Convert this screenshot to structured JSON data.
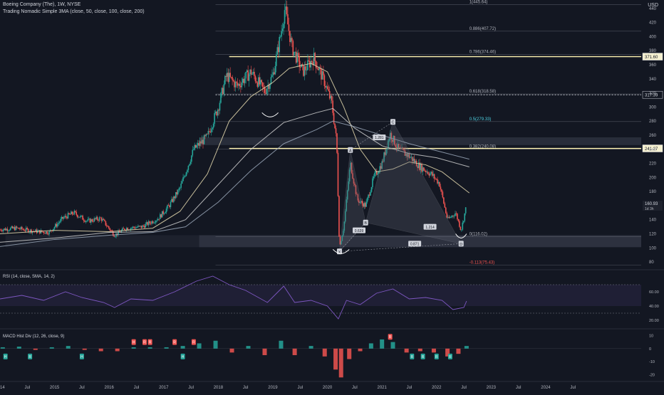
{
  "header": {
    "symbol_line": "Boeing Company (The), 1W, NYSE",
    "indicator_line": "Trading Nomadic Simple 3MA (close, 50, close, 100, close, 200)",
    "currency": "USD",
    "rsi_label": "RSI (14, close, SMA, 14, 2)",
    "macd_label": "MACD Hist Div (12, 26, close, 9)"
  },
  "colors": {
    "background": "#131722",
    "up": "#26a69a",
    "down": "#ef5350",
    "axis_text": "#b2b5be",
    "sma50": "#e8dcb0",
    "sma100": "#cfcfcf",
    "sma200": "#9aa7b8",
    "rsi": "#7e57c2",
    "level_line": "#fff3b0",
    "pattern": "#9598a1"
  },
  "chart_data": {
    "type": "candlestick",
    "price_axis": {
      "ylim": [
        70,
        452
      ],
      "ticks": [
        80,
        100,
        120,
        140,
        160,
        180,
        200,
        220,
        240,
        260,
        280,
        300,
        320,
        340,
        360,
        380,
        400,
        420,
        440
      ]
    },
    "time_axis": {
      "x_range": [
        2014.0,
        2025.75
      ],
      "labels": [
        {
          "t": 2014.0,
          "label": "2014"
        },
        {
          "t": 2014.5,
          "label": "Jul"
        },
        {
          "t": 2015.0,
          "label": "2015"
        },
        {
          "t": 2015.5,
          "label": "Jul"
        },
        {
          "t": 2016.0,
          "label": "2016"
        },
        {
          "t": 2016.5,
          "label": "Jul"
        },
        {
          "t": 2017.0,
          "label": "2017"
        },
        {
          "t": 2017.5,
          "label": "Jul"
        },
        {
          "t": 2018.0,
          "label": "2018"
        },
        {
          "t": 2018.5,
          "label": "Jul"
        },
        {
          "t": 2019.0,
          "label": "2019"
        },
        {
          "t": 2019.5,
          "label": "Jul"
        },
        {
          "t": 2020.0,
          "label": "2020"
        },
        {
          "t": 2020.5,
          "label": "Jul"
        },
        {
          "t": 2021.0,
          "label": "2021"
        },
        {
          "t": 2021.5,
          "label": "Jul"
        },
        {
          "t": 2022.0,
          "label": "2022"
        },
        {
          "t": 2022.5,
          "label": "Jul"
        },
        {
          "t": 2023.0,
          "label": "2023"
        },
        {
          "t": 2023.5,
          "label": "Jul"
        },
        {
          "t": 2024.0,
          "label": "2024"
        },
        {
          "t": 2024.5,
          "label": "Jul"
        }
      ]
    },
    "price_path": [
      [
        2014.0,
        126
      ],
      [
        2014.3,
        128
      ],
      [
        2014.6,
        124
      ],
      [
        2014.9,
        122
      ],
      [
        2015.15,
        142
      ],
      [
        2015.35,
        150
      ],
      [
        2015.6,
        138
      ],
      [
        2015.85,
        142
      ],
      [
        2016.1,
        118
      ],
      [
        2016.3,
        128
      ],
      [
        2016.6,
        130
      ],
      [
        2016.9,
        142
      ],
      [
        2017.1,
        160
      ],
      [
        2017.3,
        185
      ],
      [
        2017.55,
        240
      ],
      [
        2017.8,
        258
      ],
      [
        2018.0,
        300
      ],
      [
        2018.15,
        345
      ],
      [
        2018.35,
        330
      ],
      [
        2018.6,
        350
      ],
      [
        2018.85,
        322
      ],
      [
        2019.0,
        345
      ],
      [
        2019.15,
        405
      ],
      [
        2019.22,
        440
      ],
      [
        2019.35,
        385
      ],
      [
        2019.55,
        350
      ],
      [
        2019.75,
        370
      ],
      [
        2019.95,
        335
      ],
      [
        2020.08,
        305
      ],
      [
        2020.17,
        250
      ],
      [
        2020.22,
        100
      ],
      [
        2020.3,
        130
      ],
      [
        2020.42,
        220
      ],
      [
        2020.55,
        168
      ],
      [
        2020.7,
        160
      ],
      [
        2020.85,
        200
      ],
      [
        2021.0,
        220
      ],
      [
        2021.15,
        262
      ],
      [
        2021.3,
        240
      ],
      [
        2021.5,
        230
      ],
      [
        2021.7,
        215
      ],
      [
        2021.9,
        205
      ],
      [
        2022.05,
        192
      ],
      [
        2022.2,
        140
      ],
      [
        2022.35,
        150
      ],
      [
        2022.45,
        125
      ],
      [
        2022.55,
        160.93
      ]
    ],
    "sma_lines": [
      {
        "name": "SMA 50",
        "points": [
          [
            2014.0,
            120
          ],
          [
            2015.0,
            125
          ],
          [
            2016.0,
            123
          ],
          [
            2016.8,
            128
          ],
          [
            2017.3,
            152
          ],
          [
            2017.8,
            205
          ],
          [
            2018.2,
            280
          ],
          [
            2018.6,
            315
          ],
          [
            2019.0,
            335
          ],
          [
            2019.3,
            355
          ],
          [
            2019.7,
            362
          ],
          [
            2020.0,
            350
          ],
          [
            2020.3,
            300
          ],
          [
            2020.6,
            240
          ],
          [
            2020.9,
            208
          ],
          [
            2021.2,
            212
          ],
          [
            2021.5,
            222
          ],
          [
            2021.8,
            218
          ],
          [
            2022.1,
            208
          ],
          [
            2022.4,
            190
          ],
          [
            2022.6,
            178
          ]
        ]
      },
      {
        "name": "SMA 100",
        "points": [
          [
            2014.0,
            108
          ],
          [
            2015.0,
            114
          ],
          [
            2016.0,
            122
          ],
          [
            2016.8,
            123
          ],
          [
            2017.4,
            140
          ],
          [
            2018.0,
            190
          ],
          [
            2018.6,
            240
          ],
          [
            2019.2,
            278
          ],
          [
            2019.8,
            292
          ],
          [
            2020.1,
            298
          ],
          [
            2020.5,
            270
          ],
          [
            2021.0,
            245
          ],
          [
            2021.5,
            234
          ],
          [
            2022.0,
            228
          ],
          [
            2022.6,
            215
          ]
        ]
      },
      {
        "name": "SMA 200",
        "points": [
          [
            2014.0,
            102
          ],
          [
            2015.0,
            112
          ],
          [
            2016.0,
            118
          ],
          [
            2016.8,
            122
          ],
          [
            2017.4,
            130
          ],
          [
            2018.0,
            165
          ],
          [
            2018.6,
            210
          ],
          [
            2019.2,
            248
          ],
          [
            2019.8,
            268
          ],
          [
            2020.1,
            280
          ],
          [
            2020.5,
            272
          ],
          [
            2021.0,
            260
          ],
          [
            2021.5,
            248
          ],
          [
            2022.0,
            238
          ],
          [
            2022.6,
            226
          ]
        ]
      }
    ],
    "fib_levels": [
      {
        "label": "1(445.64)",
        "price": 445.64
      },
      {
        "label": "0.886(407.72)",
        "price": 407.72
      },
      {
        "label": "0.786(374.46)",
        "price": 374.46
      },
      {
        "label": "0.618(318.58)",
        "price": 318.58
      },
      {
        "label": "0.5(279.33)",
        "price": 279.33
      },
      {
        "label": "0.382(240.08)",
        "price": 240.08
      },
      {
        "label": "0(116.02)",
        "price": 116.02
      },
      {
        "label": "-0.113(75.43)",
        "price": 75.43
      }
    ],
    "horizontal_lines": [
      {
        "price": 371.6,
        "label": "371.60"
      },
      {
        "price": 317.39,
        "label": "317.39"
      },
      {
        "price": 241.27,
        "label": "241.27"
      }
    ],
    "zones": [
      {
        "from": 246,
        "to": 257
      },
      {
        "from": 101,
        "to": 118
      }
    ],
    "pattern_points": [
      {
        "label": "X",
        "t": 2020.22,
        "price": 95
      },
      {
        "label": "A",
        "t": 2020.42,
        "price": 239
      },
      {
        "label": "B",
        "t": 2020.7,
        "price": 136
      },
      {
        "label": "C",
        "t": 2021.2,
        "price": 279
      },
      {
        "label": "D",
        "t": 2022.45,
        "price": 106
      }
    ],
    "pattern_ratios": [
      {
        "label": "0.639",
        "t": 2020.58,
        "price": 125
      },
      {
        "label": "1.281",
        "t": 2020.95,
        "price": 257
      },
      {
        "label": "1.214",
        "t": 2021.88,
        "price": 130
      },
      {
        "label": "0.871",
        "t": 2021.6,
        "price": 106
      }
    ],
    "last_price": {
      "price": 160.93,
      "label": "160.93",
      "sublabel": "1d 3h"
    },
    "rsi": {
      "ticks": [
        20,
        40,
        60
      ],
      "ylim": [
        10,
        90
      ],
      "zone": [
        40,
        70
      ],
      "points": [
        [
          2014.0,
          50
        ],
        [
          2014.4,
          55
        ],
        [
          2014.8,
          48
        ],
        [
          2015.2,
          60
        ],
        [
          2015.5,
          52
        ],
        [
          2015.9,
          45
        ],
        [
          2016.1,
          38
        ],
        [
          2016.4,
          50
        ],
        [
          2016.8,
          48
        ],
        [
          2017.2,
          60
        ],
        [
          2017.6,
          75
        ],
        [
          2017.9,
          82
        ],
        [
          2018.2,
          70
        ],
        [
          2018.5,
          62
        ],
        [
          2018.9,
          45
        ],
        [
          2019.2,
          68
        ],
        [
          2019.4,
          45
        ],
        [
          2019.7,
          48
        ],
        [
          2020.0,
          40
        ],
        [
          2020.2,
          22
        ],
        [
          2020.35,
          48
        ],
        [
          2020.6,
          42
        ],
        [
          2020.9,
          58
        ],
        [
          2021.2,
          64
        ],
        [
          2021.5,
          50
        ],
        [
          2021.8,
          52
        ],
        [
          2022.1,
          48
        ],
        [
          2022.3,
          35
        ],
        [
          2022.5,
          38
        ],
        [
          2022.55,
          47
        ]
      ]
    },
    "macd": {
      "ticks": [
        10,
        0,
        -10,
        -20
      ],
      "ylim": [
        -24,
        14
      ],
      "hist": [
        [
          2014.05,
          1
        ],
        [
          2014.35,
          1.5
        ],
        [
          2014.65,
          -1
        ],
        [
          2014.95,
          1
        ],
        [
          2015.25,
          2
        ],
        [
          2015.55,
          -1
        ],
        [
          2015.85,
          -2
        ],
        [
          2016.15,
          -2
        ],
        [
          2016.45,
          1
        ],
        [
          2016.75,
          1
        ],
        [
          2017.05,
          1
        ],
        [
          2017.35,
          2
        ],
        [
          2017.65,
          4
        ],
        [
          2017.95,
          6
        ],
        [
          2018.25,
          -3
        ],
        [
          2018.55,
          2
        ],
        [
          2018.85,
          -5
        ],
        [
          2019.15,
          6
        ],
        [
          2019.4,
          -5
        ],
        [
          2019.7,
          2
        ],
        [
          2019.95,
          -6
        ],
        [
          2020.15,
          -16
        ],
        [
          2020.25,
          -22
        ],
        [
          2020.4,
          -8
        ],
        [
          2020.6,
          -2
        ],
        [
          2020.8,
          4
        ],
        [
          2021.0,
          7
        ],
        [
          2021.2,
          5
        ],
        [
          2021.45,
          -3
        ],
        [
          2021.7,
          -2
        ],
        [
          2021.95,
          -3
        ],
        [
          2022.2,
          -6
        ],
        [
          2022.4,
          -4
        ],
        [
          2022.55,
          2
        ]
      ],
      "divergence_labels": [
        {
          "label": "H",
          "t": 2014.1,
          "v": -6,
          "color": "#26a69a"
        },
        {
          "label": "R",
          "t": 2014.55,
          "v": -6,
          "color": "#26a69a"
        },
        {
          "label": "H",
          "t": 2015.5,
          "v": -6,
          "color": "#26a69a"
        },
        {
          "label": "H",
          "t": 2016.45,
          "v": 5,
          "color": "#ef5350"
        },
        {
          "label": "R",
          "t": 2016.65,
          "v": 5,
          "color": "#ef5350"
        },
        {
          "label": "R",
          "t": 2016.75,
          "v": 5,
          "color": "#ef5350"
        },
        {
          "label": "R",
          "t": 2017.2,
          "v": 5,
          "color": "#ef5350"
        },
        {
          "label": "H",
          "t": 2017.35,
          "v": -6,
          "color": "#26a69a"
        },
        {
          "label": "R",
          "t": 2017.55,
          "v": 5,
          "color": "#ef5350"
        },
        {
          "label": "R",
          "t": 2021.15,
          "v": 9,
          "color": "#ef5350"
        },
        {
          "label": "R",
          "t": 2021.55,
          "v": -6,
          "color": "#26a69a"
        },
        {
          "label": "R",
          "t": 2021.75,
          "v": -6,
          "color": "#26a69a"
        },
        {
          "label": "R",
          "t": 2022.0,
          "v": -6,
          "color": "#26a69a"
        },
        {
          "label": "R",
          "t": 2022.25,
          "v": -6,
          "color": "#26a69a"
        }
      ]
    }
  }
}
